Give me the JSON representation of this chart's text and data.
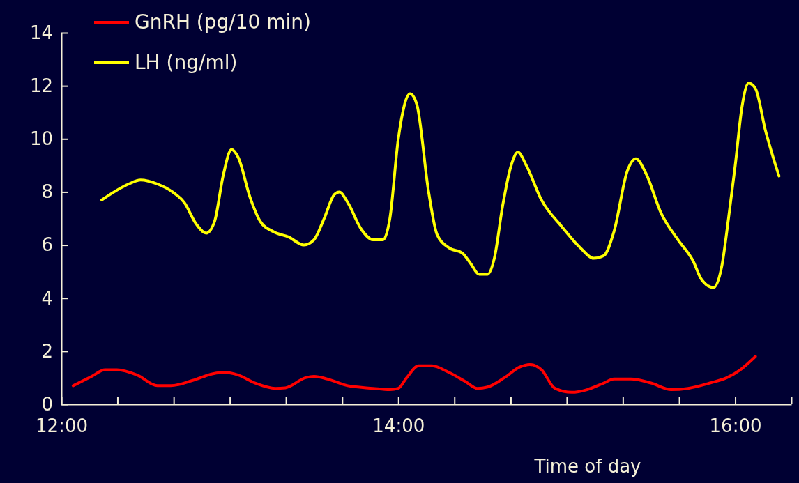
{
  "chart_data": {
    "type": "line",
    "xlabel": "Time of day",
    "xlim": [
      12,
      16.333
    ],
    "ylim": [
      0,
      14
    ],
    "xticks": [
      {
        "value": 12,
        "label": "12:00"
      },
      {
        "value": 12.333,
        "label": null
      },
      {
        "value": 12.667,
        "label": null
      },
      {
        "value": 13,
        "label": null
      },
      {
        "value": 13.333,
        "label": null
      },
      {
        "value": 13.667,
        "label": null
      },
      {
        "value": 14,
        "label": "14:00"
      },
      {
        "value": 14.333,
        "label": null
      },
      {
        "value": 14.667,
        "label": null
      },
      {
        "value": 15,
        "label": null
      },
      {
        "value": 15.333,
        "label": null
      },
      {
        "value": 15.667,
        "label": null
      },
      {
        "value": 16,
        "label": "16:00"
      },
      {
        "value": 16.333,
        "label": null
      }
    ],
    "yticks": [
      0,
      2,
      4,
      6,
      8,
      10,
      12,
      14
    ],
    "grid": false,
    "legend": "top left",
    "marker": "none",
    "line_style": "solid",
    "series": [
      {
        "name": "GnRH (pg/10 min)",
        "color": "#ff0000",
        "x": [
          12.07,
          12.18,
          12.26,
          12.33,
          12.45,
          12.57,
          12.65,
          12.78,
          12.9,
          12.97,
          13.05,
          13.15,
          13.27,
          13.33,
          13.45,
          13.5,
          13.58,
          13.7,
          13.85,
          13.95,
          14,
          14.05,
          14.12,
          14.2,
          14.3,
          14.4,
          14.47,
          14.53,
          14.63,
          14.72,
          14.78,
          14.85,
          14.93,
          15.03,
          15.12,
          15.22,
          15.28,
          15.38,
          15.5,
          15.62,
          15.72,
          15.85,
          15.95,
          16.03,
          16.12
        ],
        "values": [
          0.7,
          1.05,
          1.3,
          1.3,
          1.1,
          0.7,
          0.7,
          0.9,
          1.15,
          1.2,
          1.1,
          0.8,
          0.6,
          0.62,
          1,
          1.05,
          0.95,
          0.7,
          0.6,
          0.55,
          0.6,
          1,
          1.45,
          1.45,
          1.2,
          0.85,
          0.6,
          0.65,
          1,
          1.4,
          1.5,
          1.3,
          0.6,
          0.45,
          0.55,
          0.8,
          0.95,
          0.95,
          0.8,
          0.55,
          0.6,
          0.8,
          1,
          1.3,
          1.8
        ]
      },
      {
        "name": "LH (ng/ml)",
        "color": "#ffff00",
        "x": [
          12.24,
          12.4,
          12.47,
          12.57,
          12.66,
          12.73,
          12.8,
          12.86,
          12.91,
          12.96,
          13.01,
          13.05,
          13.12,
          13.18,
          13.26,
          13.35,
          13.44,
          13.5,
          13.56,
          13.62,
          13.65,
          13.7,
          13.78,
          13.85,
          13.91,
          13.95,
          14,
          14.07,
          14.11,
          14.18,
          14.23,
          14.3,
          14.38,
          14.43,
          14.48,
          14.53,
          14.57,
          14.62,
          14.67,
          14.71,
          14.76,
          14.85,
          14.97,
          15.08,
          15.16,
          15.22,
          15.28,
          15.36,
          15.41,
          15.47,
          15.56,
          15.66,
          15.75,
          15.8,
          15.87,
          15.92,
          15.96,
          16,
          16.04,
          16.08,
          16.12,
          16.18,
          16.23,
          16.26
        ],
        "values": [
          7.7,
          8.3,
          8.45,
          8.3,
          8,
          7.6,
          6.8,
          6.45,
          6.9,
          8.6,
          9.6,
          9.3,
          7.8,
          6.9,
          6.5,
          6.3,
          6,
          6.2,
          7,
          7.9,
          8,
          7.6,
          6.6,
          6.2,
          6.2,
          7,
          10,
          11.7,
          11.3,
          8,
          6.4,
          5.9,
          5.7,
          5.3,
          4.9,
          4.9,
          5.5,
          7.5,
          9,
          9.5,
          9,
          7.7,
          6.7,
          5.9,
          5.5,
          5.6,
          6.5,
          8.8,
          9.25,
          8.7,
          7.2,
          6.2,
          5.4,
          4.7,
          4.4,
          5.2,
          7,
          9,
          11.2,
          12.1,
          11.9,
          10.3,
          9.2,
          8.6
        ]
      }
    ]
  }
}
